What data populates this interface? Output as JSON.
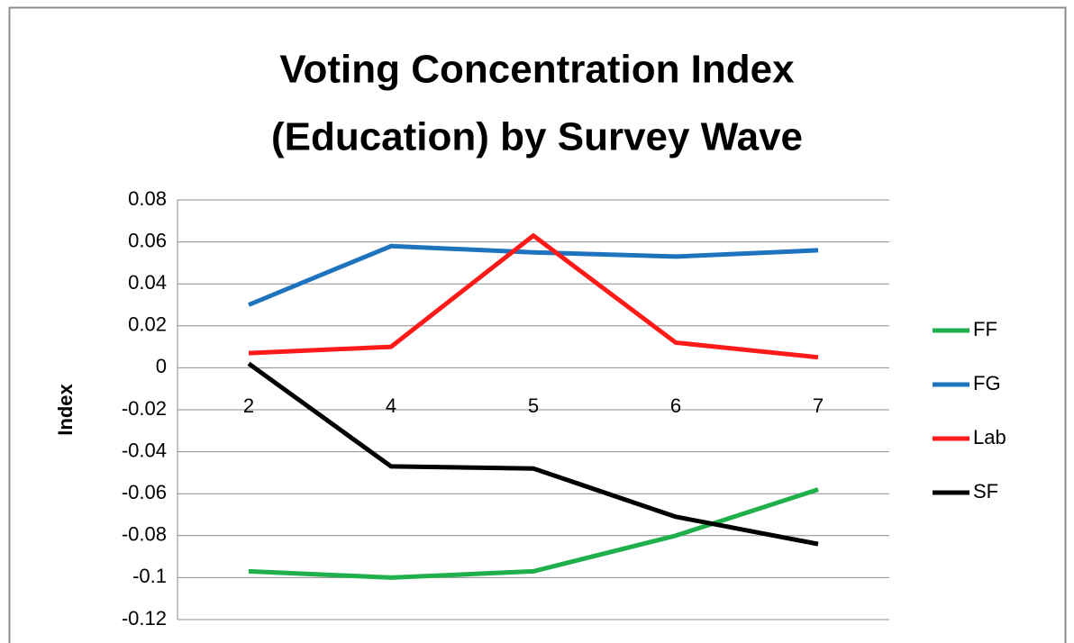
{
  "chart_data": {
    "type": "line",
    "title": [
      "Voting Concentration Index",
      "(Education) by Survey Wave"
    ],
    "y_label": "Index",
    "categories": [
      "2",
      "4",
      "5",
      "6",
      "7"
    ],
    "series": [
      {
        "name": "FF",
        "color": "#1fb04b",
        "values": [
          -0.097,
          -0.1,
          -0.097,
          -0.08,
          -0.058
        ]
      },
      {
        "name": "FG",
        "color": "#1e73be",
        "values": [
          0.03,
          0.058,
          0.055,
          0.053,
          0.056
        ]
      },
      {
        "name": "Lab",
        "color": "#ff1a1a",
        "values": [
          0.007,
          0.01,
          0.063,
          0.012,
          0.005
        ]
      },
      {
        "name": "SF",
        "color": "#000000",
        "values": [
          0.002,
          -0.047,
          -0.048,
          -0.071,
          -0.084
        ]
      }
    ],
    "ylim": [
      -0.12,
      0.08
    ],
    "yticks": [
      0.08,
      0.06,
      0.04,
      0.02,
      0,
      -0.02,
      -0.04,
      -0.06,
      -0.08,
      -0.1,
      -0.12
    ],
    "grid": true,
    "legend": "right"
  }
}
